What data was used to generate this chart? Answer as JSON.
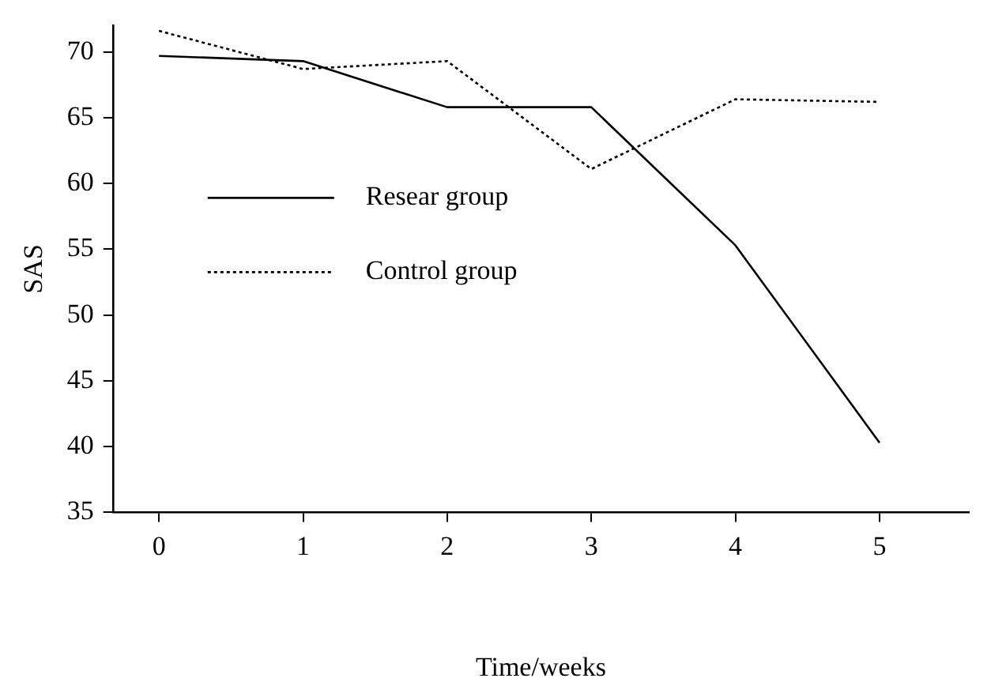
{
  "chart_data": {
    "type": "line",
    "xlabel": "Time/weeks",
    "ylabel": "SAS",
    "x": [
      0,
      1,
      2,
      3,
      4,
      5
    ],
    "series": [
      {
        "name": "Resear group",
        "color": "#000000",
        "values": [
          69.7,
          69.3,
          65.8,
          65.8,
          55.3,
          40.3
        ],
        "line_style": "solid"
      },
      {
        "name": "Control group",
        "color": "#000000",
        "values": [
          71.6,
          68.7,
          69.3,
          61.1,
          66.4,
          66.2
        ],
        "line_style": "dotted"
      }
    ],
    "xlim": [
      -0.32,
      5.62
    ],
    "xticks": [
      0,
      1,
      2,
      3,
      4,
      5
    ],
    "ylim": [
      35,
      72
    ],
    "yticks": [
      35,
      40,
      45,
      50,
      55,
      60,
      65,
      70
    ],
    "grid": false,
    "legend": "left",
    "marker": "none"
  }
}
